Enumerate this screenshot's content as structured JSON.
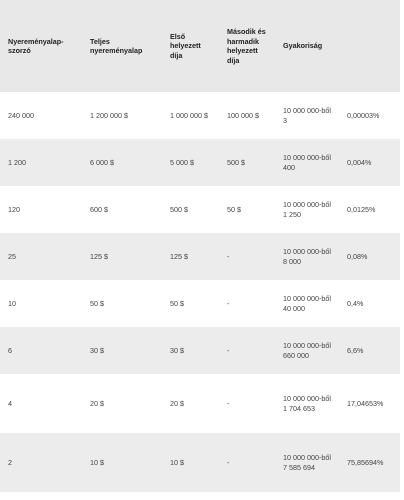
{
  "table": {
    "header": [
      "Nyereményalap-szorzó",
      "Teljes nyereményalap",
      "Első helyezett díja",
      "Második és harmadik helyezett díja",
      "Gyakoriság"
    ],
    "rows": [
      [
        "240 000",
        "1 200 000 $",
        "1 000 000 $",
        "100 000 $",
        "10 000 000-ből 3",
        "0,00003%"
      ],
      [
        "1 200",
        "6 000 $",
        "5 000 $",
        "500 $",
        "10 000 000-ből 400",
        "0,004%"
      ],
      [
        "120",
        "600 $",
        "500 $",
        "50 $",
        "10 000 000-ből 1 250",
        "0,0125%"
      ],
      [
        "25",
        "125 $",
        "125 $",
        "-",
        "10 000 000-ből 8 000",
        "0,08%"
      ],
      [
        "10",
        "50 $",
        "50 $",
        "-",
        "10 000 000-ből 40 000",
        "0,4%"
      ],
      [
        "6",
        "30 $",
        "30 $",
        "-",
        "10 000 000-ből 660 000",
        "6,6%"
      ],
      [
        "4",
        "20 $",
        "20 $",
        "-",
        "10 000 000-ből 1 704 653",
        "17,04653%"
      ],
      [
        "2",
        "10 $",
        "10 $",
        "-",
        "10 000 000-ből 7 585 694",
        "75,85694%"
      ]
    ]
  }
}
